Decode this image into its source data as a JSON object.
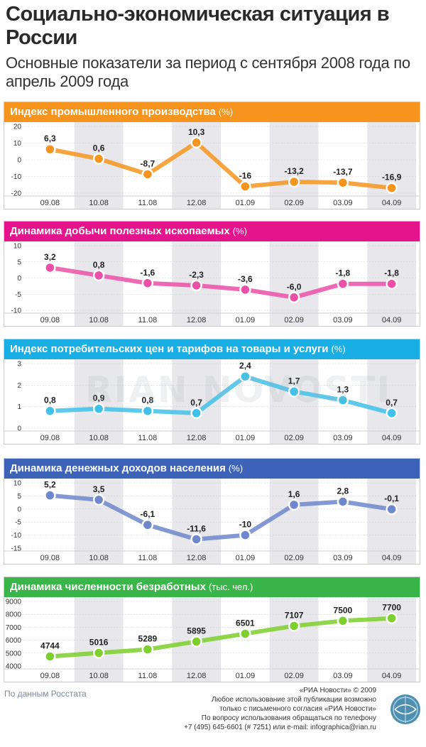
{
  "title": "Социально-экономическая ситуация в России",
  "subtitle": "Основные показатели за период с сентября 2008 года по апрель 2009 года",
  "watermark": "RIAN NOVOSTI",
  "footer": {
    "source": "По данным Росстата",
    "lines": [
      "«РИА Новости» © 2009",
      "Любое использование этой публикации возможно",
      "только с письменного согласия «РИА Новости»",
      "По вопросу использования обращаться по телефону",
      "+7 (495) 645-6601 (# 7251) или e-mail: infographica@rian.ru"
    ]
  },
  "chart_data": [
    {
      "type": "line",
      "title": "Индекс промышленного производства",
      "unit": "(%)",
      "color": "#f7941d",
      "header_color": "#f7941d",
      "categories": [
        "09.08",
        "10.08",
        "11.08",
        "12.08",
        "01.09",
        "02.09",
        "03.09",
        "04.09"
      ],
      "values": [
        6.3,
        0.6,
        -8.7,
        10.3,
        -16,
        -13.2,
        -13.7,
        -16.9
      ],
      "labels": [
        "6,3",
        "0,6",
        "-8,7",
        "10,3",
        "-16",
        "-13,2",
        "-13,7",
        "-16,9"
      ],
      "yticks": [
        "20",
        "10",
        "0",
        "-10",
        "-20"
      ],
      "ylim": [
        -20,
        20
      ]
    },
    {
      "type": "line",
      "title": "Динамика добычи полезных ископаемых",
      "unit": "(%)",
      "color": "#ec4fa8",
      "header_color": "#e6148c",
      "categories": [
        "09.08",
        "10.08",
        "11.08",
        "12.08",
        "01.09",
        "02.09",
        "03.09",
        "04.09"
      ],
      "values": [
        3.2,
        0.8,
        -1.6,
        -2.3,
        -3.6,
        -6.0,
        -1.8,
        -1.8
      ],
      "labels": [
        "3,2",
        "0,8",
        "-1,6",
        "-2,3",
        "-3,6",
        "-6,0",
        "-1,8",
        "-1,8"
      ],
      "yticks": [
        "10",
        "5",
        "0",
        "-5",
        "-10"
      ],
      "ylim": [
        -10,
        10
      ]
    },
    {
      "type": "line",
      "title": "Индекс потребительских цен и тарифов на товары и услуги",
      "unit": "(%)",
      "color": "#3fc1ea",
      "header_color": "#19aee4",
      "categories": [
        "09.08",
        "10.08",
        "11.08",
        "12.08",
        "01.09",
        "02.09",
        "03.09",
        "04.09"
      ],
      "values": [
        0.8,
        0.9,
        0.8,
        0.7,
        2.4,
        1.7,
        1.3,
        0.7
      ],
      "labels": [
        "0,8",
        "0,9",
        "0,8",
        "0,7",
        "2,4",
        "1,7",
        "1,3",
        "0,7"
      ],
      "yticks": [
        "3",
        "2",
        "1",
        "0"
      ],
      "ylim": [
        0,
        3
      ]
    },
    {
      "type": "line",
      "title": "Динамика денежных доходов населения",
      "unit": "(%)",
      "color": "#6f87cc",
      "header_color": "#3d63b8",
      "categories": [
        "09.08",
        "10.08",
        "11.08",
        "12.08",
        "01.09",
        "02.09",
        "03.09",
        "04.09"
      ],
      "values": [
        5.2,
        3.5,
        -6.1,
        -11.6,
        -10,
        1.6,
        2.8,
        -0.1
      ],
      "labels": [
        "5,2",
        "3,5",
        "-6,1",
        "-11,6",
        "-10",
        "1,6",
        "2,8",
        "-0,1"
      ],
      "yticks": [
        "10",
        "5",
        "0",
        "-5",
        "-10",
        "-15"
      ],
      "ylim": [
        -15,
        10
      ]
    },
    {
      "type": "line",
      "title": "Динамика численности безработных",
      "unit": "(тыс. чел.)",
      "color": "#7ccf2c",
      "header_color": "#3ab54a",
      "categories": [
        "09.08",
        "10.08",
        "11.08",
        "12.08",
        "01.09",
        "02.09",
        "03.09",
        "04.09"
      ],
      "values": [
        4744,
        5016,
        5289,
        5895,
        6501,
        7107,
        7500,
        7700
      ],
      "labels": [
        "4744",
        "5016",
        "5289",
        "5895",
        "6501",
        "7107",
        "7500",
        "7700"
      ],
      "yticks": [
        "9000",
        "8000",
        "7000",
        "6000",
        "5000",
        "4000"
      ],
      "ylim": [
        4000,
        9000
      ]
    }
  ]
}
